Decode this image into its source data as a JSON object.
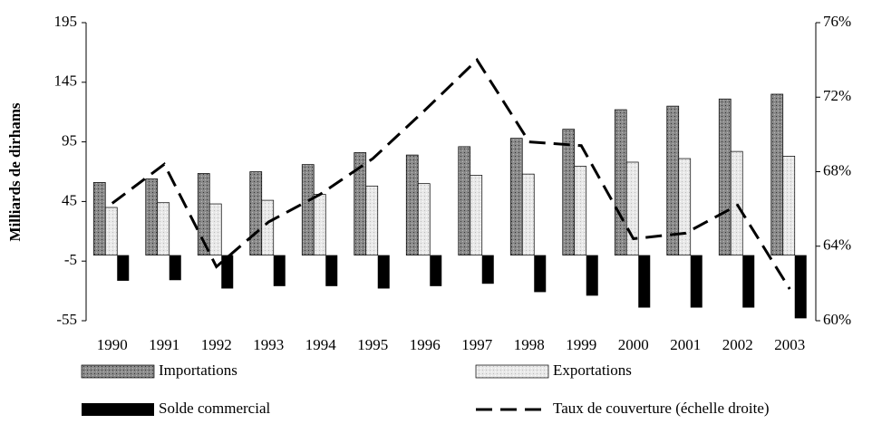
{
  "chart_data": {
    "type": "bar",
    "y_axis_label": "Milliards de dirhams",
    "categories": [
      "1990",
      "1991",
      "1992",
      "1993",
      "1994",
      "1995",
      "1996",
      "1997",
      "1998",
      "1999",
      "2000",
      "2001",
      "2002",
      "2003"
    ],
    "series": [
      {
        "name": "Importations",
        "color": "#6e6e6e",
        "values": [
          61,
          64,
          68.5,
          70,
          76,
          86,
          84,
          91,
          98,
          105.6,
          122,
          125,
          131,
          135
        ]
      },
      {
        "name": "Exportations",
        "color": "#e4e4e4",
        "values": [
          40,
          44,
          43,
          46,
          51,
          58,
          60,
          67,
          68,
          74.5,
          78,
          81,
          87,
          83
        ]
      },
      {
        "name": "Solde commercial",
        "color": "#000000",
        "values": [
          -21.5,
          -21,
          -28,
          -26,
          -26,
          -28,
          -26,
          -24,
          -31,
          -34,
          -44,
          -44,
          -44,
          -53
        ]
      },
      {
        "name": "Taux de couverture (échelle droite)",
        "type": "line",
        "axis": "y2",
        "color": "#000000",
        "values": [
          66.3,
          68.4,
          62.9,
          65.3,
          66.8,
          68.7,
          71.3,
          74.0,
          69.6,
          69.4,
          64.4,
          64.7,
          66.2,
          61.7
        ]
      }
    ],
    "ylim": [
      -55,
      195
    ],
    "yticks": [
      -55,
      -5,
      45,
      95,
      145,
      195
    ],
    "y2lim": [
      60,
      76
    ],
    "y2ticks": [
      {
        "value": 60,
        "label": "60%"
      },
      {
        "value": 64,
        "label": "64%"
      },
      {
        "value": 68,
        "label": "68%"
      },
      {
        "value": 72,
        "label": "72%"
      },
      {
        "value": 76,
        "label": "76%"
      }
    ],
    "legend": "bottom"
  }
}
